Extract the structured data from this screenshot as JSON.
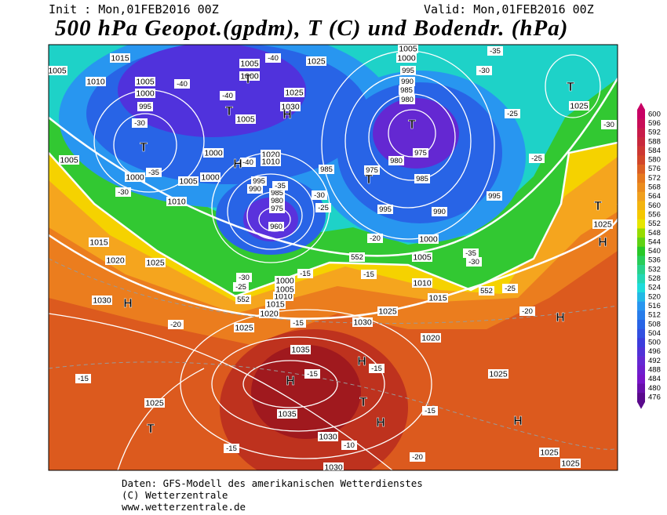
{
  "header": {
    "init": "Init : Mon,01FEB2016 00Z",
    "valid": "Valid: Mon,01FEB2016 00Z",
    "title": "500 hPa Geopot.(gpdm), T (C) und Bodendr. (hPa)"
  },
  "map": {
    "labels": [
      "1015",
      "1005",
      "1010",
      "1005",
      "1000",
      "995",
      "-30",
      "-40",
      "-40",
      "1005",
      "1000",
      "-40",
      "1025",
      "1025",
      "1030",
      "1005",
      "1020",
      "1010",
      "1000",
      "1000",
      "-40",
      "1005",
      "-35",
      "1000",
      "1005",
      "1010",
      "-30",
      "995",
      "990",
      "985",
      "980",
      "975",
      "960",
      "-35",
      "-30",
      "-25",
      "985",
      "975",
      "980",
      "985",
      "975",
      "1005",
      "1000",
      "995",
      "990",
      "985",
      "980",
      "-30",
      "-35",
      "-25",
      "-25",
      "1025",
      "-30",
      "995",
      "990",
      "995",
      "-20",
      "1000",
      "1005",
      "-35",
      "-30",
      "-25",
      "-20",
      "1010",
      "1015",
      "1020",
      "1025",
      "1025",
      "-15",
      "-20",
      "1025",
      "1025",
      "1030",
      "1030",
      "-10",
      "1035",
      "1035",
      "-15",
      "-15",
      "1030",
      "1025",
      "-15",
      "1025",
      "1020",
      "1015",
      "1010",
      "1005",
      "1000",
      "-15",
      "-15",
      "-25",
      "-30",
      "1025",
      "1020",
      "1015",
      "-20",
      "1030",
      "-15",
      "1025",
      "-15",
      "552",
      "552",
      "552"
    ],
    "markers": [
      "T",
      "T",
      "H",
      "H",
      "T",
      "T",
      "T",
      "T",
      "T",
      "H",
      "H",
      "H",
      "H",
      "H",
      "T",
      "H",
      "H",
      "T"
    ]
  },
  "legend": {
    "levels": [
      600,
      596,
      592,
      588,
      584,
      580,
      576,
      572,
      568,
      564,
      560,
      556,
      552,
      548,
      544,
      540,
      536,
      532,
      528,
      524,
      520,
      516,
      512,
      508,
      504,
      500,
      496,
      492,
      488,
      484,
      480,
      476
    ]
  },
  "footer": {
    "lines": [
      "Daten: GFS-Modell des amerikanischen Wetterdienstes",
      "(C) Wetterzentrale",
      "www.wetterzentrale.de"
    ]
  }
}
